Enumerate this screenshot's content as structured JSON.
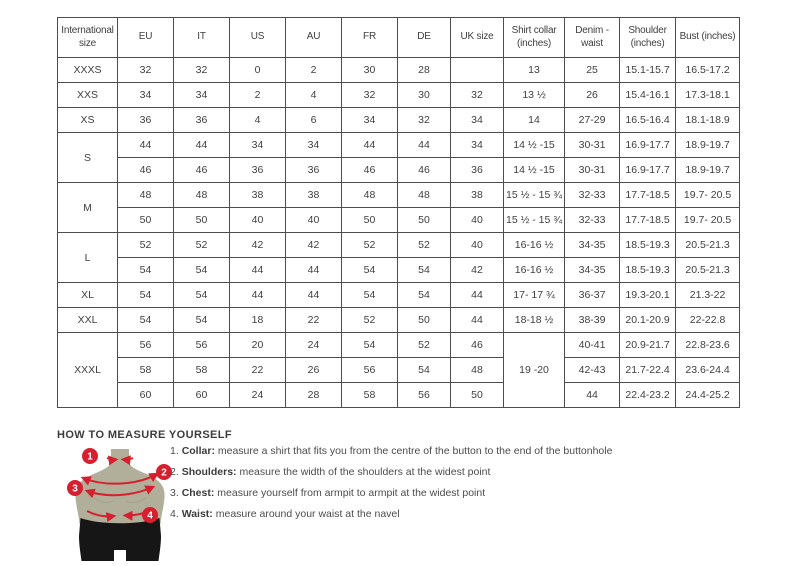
{
  "table": {
    "columns": [
      "International size",
      "EU",
      "IT",
      "US",
      "AU",
      "FR",
      "DE",
      "UK size",
      "Shirt collar (inches)",
      "Denim - waist",
      "Shoulder (inches)",
      "Bust (inches)"
    ],
    "rows": [
      [
        "XXXS",
        "32",
        "32",
        "0",
        "2",
        "30",
        "28",
        "",
        "13",
        "25",
        "15.1-15.7",
        "16.5-17.2"
      ],
      [
        "XXS",
        "34",
        "34",
        "2",
        "4",
        "32",
        "30",
        "32",
        "13 ½",
        "26",
        "15.4-16.1",
        "17.3-18.1"
      ],
      [
        "XS",
        "36",
        "36",
        "4",
        "6",
        "34",
        "32",
        "34",
        "14",
        "27-29",
        "16.5-16.4",
        "18.1-18.9"
      ],
      [
        {
          "text": "S",
          "rowspan": 2
        },
        "44",
        "44",
        "34",
        "34",
        "44",
        "44",
        "34",
        "14 ½ -15",
        "30-31",
        "16.9-17.7",
        "18.9-19.7"
      ],
      [
        null,
        "46",
        "46",
        "36",
        "36",
        "46",
        "46",
        "36",
        "14 ½ -15",
        "30-31",
        "16.9-17.7",
        "18.9-19.7"
      ],
      [
        {
          "text": "M",
          "rowspan": 2
        },
        "48",
        "48",
        "38",
        "38",
        "48",
        "48",
        "38",
        "15 ½ - 15 ¾",
        "32-33",
        "17.7-18.5",
        "19.7- 20.5"
      ],
      [
        null,
        "50",
        "50",
        "40",
        "40",
        "50",
        "50",
        "40",
        "15 ½ - 15 ¾",
        "32-33",
        "17.7-18.5",
        "19.7- 20.5"
      ],
      [
        {
          "text": "L",
          "rowspan": 2
        },
        "52",
        "52",
        "42",
        "42",
        "52",
        "52",
        "40",
        "16-16 ½",
        "34-35",
        "18.5-19.3",
        "20.5-21.3"
      ],
      [
        null,
        "54",
        "54",
        "44",
        "44",
        "54",
        "54",
        "42",
        "16-16 ½",
        "34-35",
        "18.5-19.3",
        "20.5-21.3"
      ],
      [
        "XL",
        "54",
        "54",
        "44",
        "44",
        "54",
        "54",
        "44",
        "17- 17 ¾",
        "36-37",
        "19.3-20.1",
        "21.3-22"
      ],
      [
        "XXL",
        "54",
        "54",
        "18",
        "22",
        "52",
        "50",
        "44",
        "18-18 ½",
        "38-39",
        "20.1-20.9",
        "22-22.8"
      ],
      [
        {
          "text": "XXXL",
          "rowspan": 3
        },
        "56",
        "56",
        "20",
        "24",
        "54",
        "52",
        "46",
        {
          "text": "19 -20",
          "rowspan": 3
        },
        "40-41",
        "20.9-21.7",
        "22.8-23.6"
      ],
      [
        null,
        "58",
        "58",
        "22",
        "26",
        "56",
        "54",
        "48",
        null,
        "42-43",
        "21.7-22.4",
        "23.6-24.4"
      ],
      [
        null,
        "60",
        "60",
        "24",
        "28",
        "58",
        "56",
        "50",
        null,
        "44",
        "22.4-23.2",
        "24.4-25.2"
      ]
    ]
  },
  "measure": {
    "heading": "HOW TO MEASURE YOURSELF",
    "badges": [
      "1",
      "2",
      "3",
      "4"
    ],
    "items": [
      {
        "num": "1.",
        "label": "Collar:",
        "text": "measure a shirt that fits you from the centre of the button to the end of the buttonhole"
      },
      {
        "num": "2.",
        "label": "Shoulders:",
        "text": "measure the width of the shoulders at the widest point"
      },
      {
        "num": "3.",
        "label": "Chest:",
        "text": "measure yourself from armpit to armpit at the widest point"
      },
      {
        "num": "4.",
        "label": "Waist:",
        "text": "measure around your waist at the navel"
      }
    ]
  },
  "colors": {
    "accent_red": "#d6202f",
    "mannequin_body": "#b1af9a",
    "pants_black": "#161616",
    "table_border": "#4d4d4f",
    "text": "#404042"
  }
}
